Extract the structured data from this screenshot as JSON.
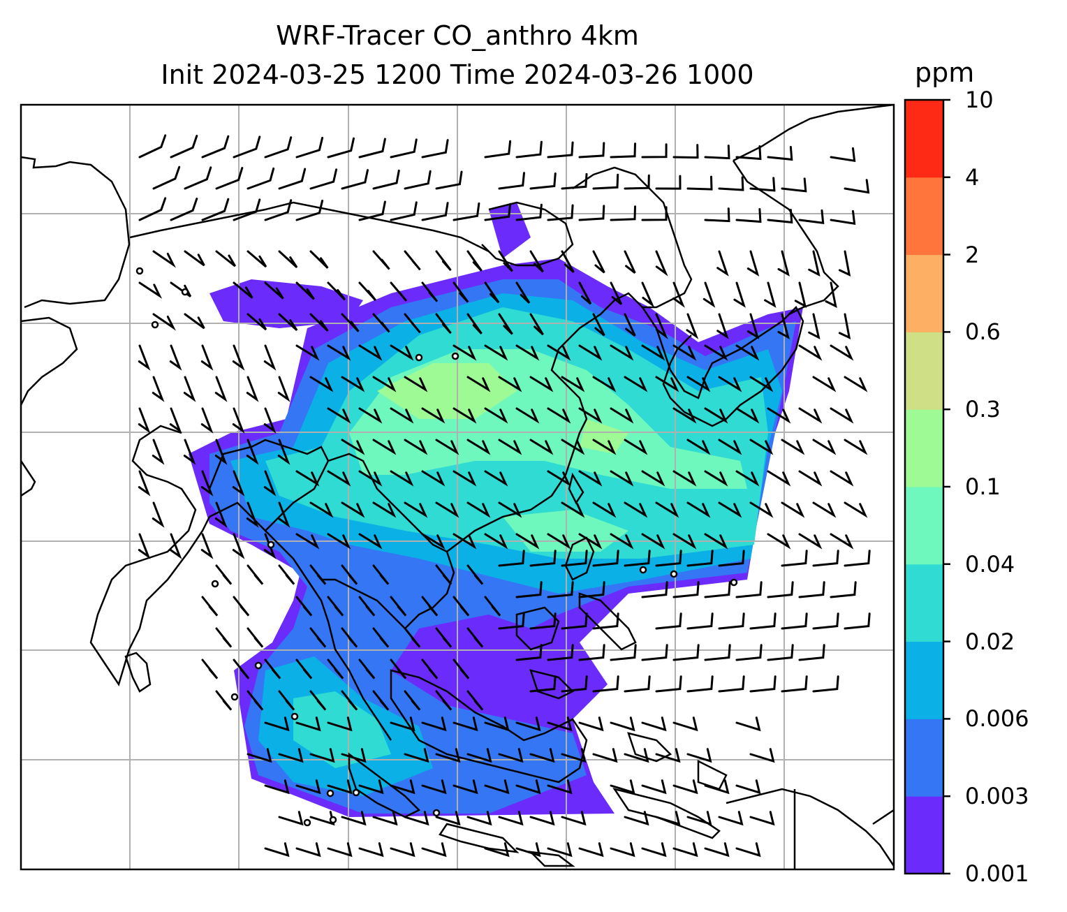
{
  "title_line1": "WRF-Tracer CO_anthro 4km",
  "title_line2": "Init 2024-03-25 1200 Time 2024-03-26 1000",
  "colorbar": {
    "unit": "ppm",
    "levels": [
      "0.001",
      "0.003",
      "0.006",
      "0.02",
      "0.04",
      "0.1",
      "0.3",
      "0.6",
      "2",
      "4",
      "10"
    ],
    "colors": [
      "#6a2bfb",
      "#3576f4",
      "#0bb0e6",
      "#2fdbd2",
      "#6ff8be",
      "#9efa95",
      "#cfdf86",
      "#fdb064",
      "#ff753c",
      "#ff2a16"
    ]
  },
  "map_colors": {
    "land_line": "#000000",
    "grid_line": "#b0b0b0",
    "barb": "#000000"
  }
}
